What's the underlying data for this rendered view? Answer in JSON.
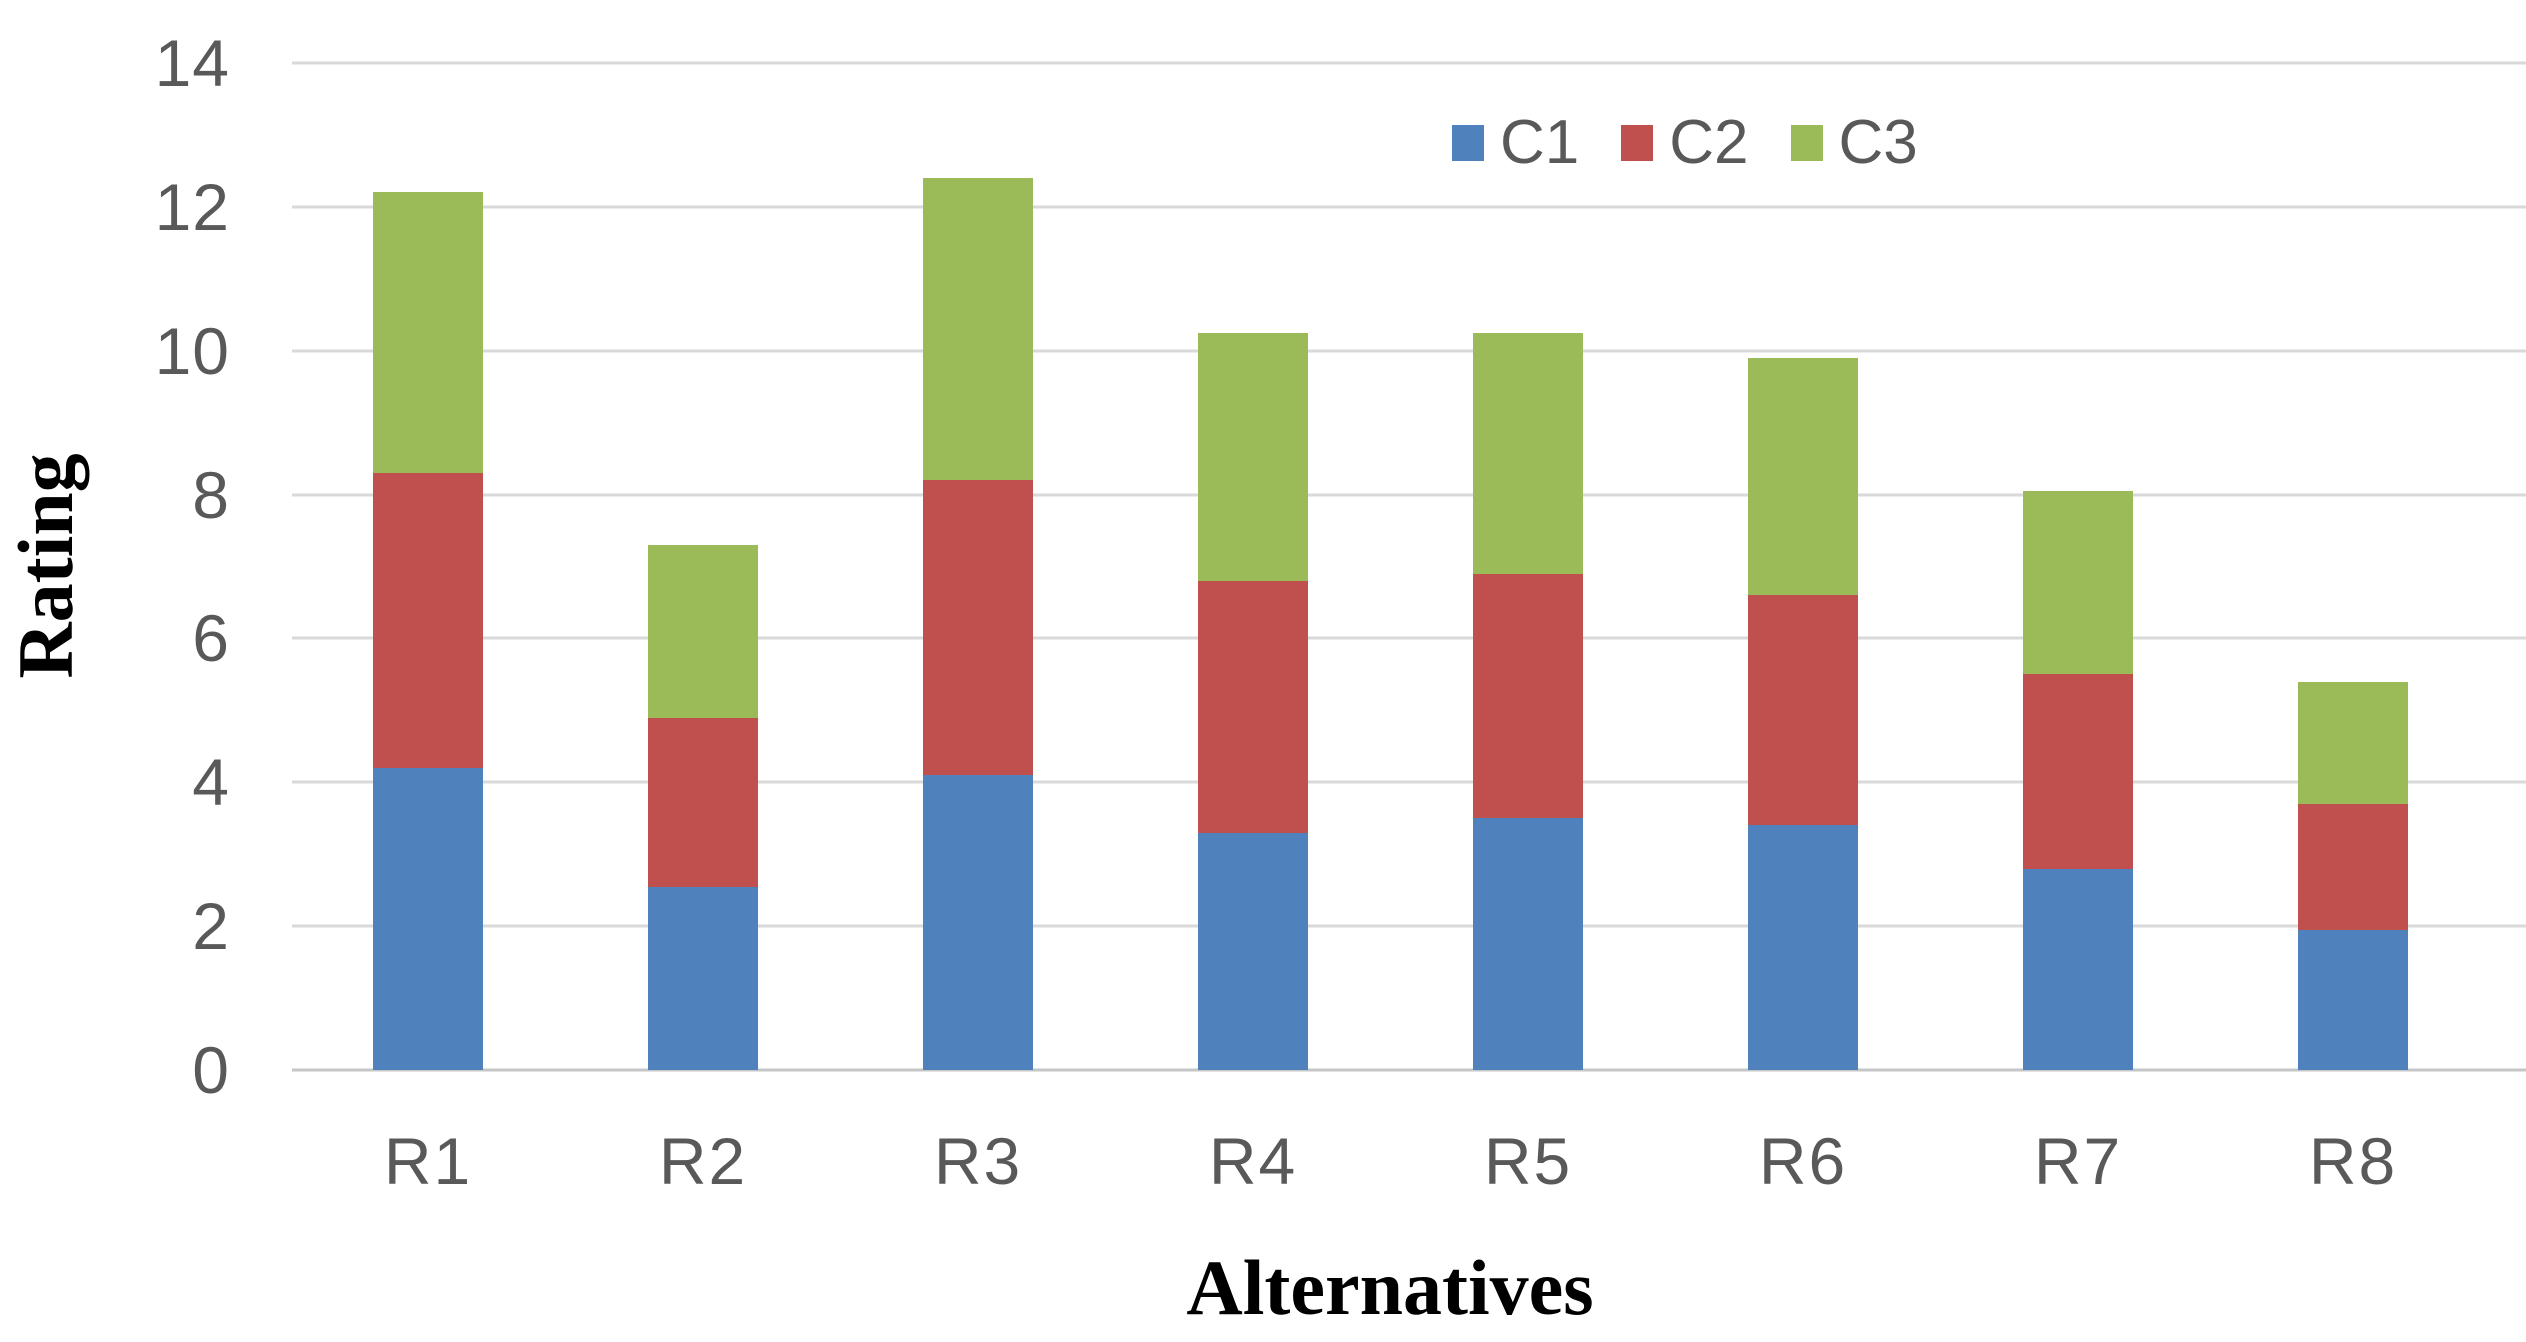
{
  "figure": {
    "background": "#ffffff",
    "tick_color": "#595959",
    "gridline_color": "#d9d9d9",
    "axis_title_color": "#000000"
  },
  "chart_data": {
    "type": "bar",
    "stacked": true,
    "title": "",
    "xlabel": "Alternatives",
    "ylabel": "Rating",
    "categories": [
      "R1",
      "R2",
      "R3",
      "R4",
      "R5",
      "R6",
      "R7",
      "R8"
    ],
    "series": [
      {
        "name": "C1",
        "color": "#4F81BD",
        "values": [
          4.2,
          2.55,
          4.1,
          3.3,
          3.5,
          3.4,
          2.8,
          1.95
        ]
      },
      {
        "name": "C2",
        "color": "#C0504D",
        "values": [
          4.1,
          2.35,
          4.1,
          3.5,
          3.4,
          3.2,
          2.7,
          1.75
        ]
      },
      {
        "name": "C3",
        "color": "#9BBB59",
        "values": [
          3.9,
          2.4,
          4.2,
          3.45,
          3.35,
          3.3,
          2.55,
          1.7
        ]
      }
    ],
    "stack_totals": [
      12.2,
      7.3,
      12.4,
      10.25,
      10.25,
      9.9,
      8.05,
      5.4
    ],
    "ylim": [
      0,
      14
    ],
    "yticks": [
      0,
      2,
      4,
      6,
      8,
      10,
      12,
      14
    ],
    "grid": true,
    "legend_position": "top-right",
    "legend_entries": [
      "C1",
      "C2",
      "C3"
    ]
  }
}
